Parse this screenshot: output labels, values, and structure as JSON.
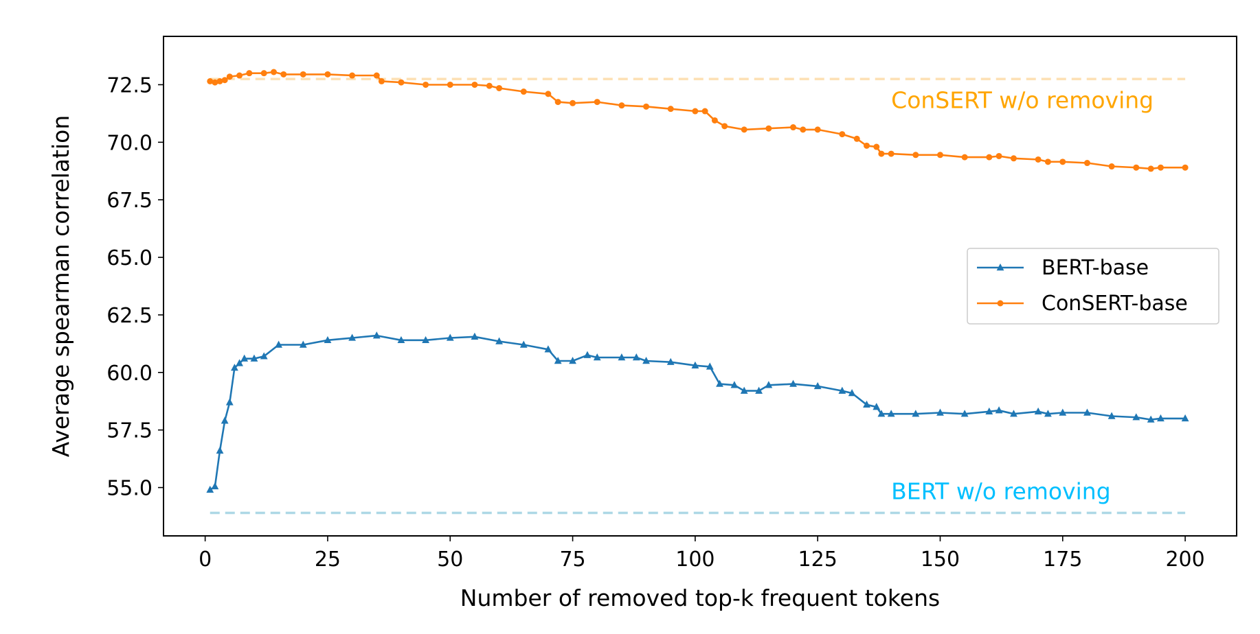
{
  "chart_data": {
    "type": "line",
    "title": "",
    "xlabel": "Number of removed top-k frequent tokens",
    "ylabel": "Average spearman correlation",
    "xlim": [
      -8.5,
      210.5
    ],
    "ylim": [
      52.9,
      74.6
    ],
    "xticks": [
      0,
      25,
      50,
      75,
      100,
      125,
      150,
      175,
      200
    ],
    "xtick_labels": [
      "0",
      "25",
      "50",
      "75",
      "100",
      "125",
      "150",
      "175",
      "200"
    ],
    "yticks": [
      55.0,
      57.5,
      60.0,
      62.5,
      65.0,
      67.5,
      70.0,
      72.5
    ],
    "ytick_labels": [
      "55.0",
      "57.5",
      "60.0",
      "62.5",
      "65.0",
      "67.5",
      "70.0",
      "72.5"
    ],
    "grid": false,
    "legend_position": "center-right",
    "series": [
      {
        "name": "BERT-base",
        "color": "#1f77b4",
        "marker": "triangle",
        "x": [
          1,
          2,
          3,
          4,
          5,
          6,
          7,
          8,
          10,
          12,
          15,
          20,
          25,
          30,
          35,
          40,
          45,
          50,
          55,
          60,
          65,
          70,
          72,
          75,
          78,
          80,
          85,
          88,
          90,
          95,
          100,
          103,
          105,
          108,
          110,
          113,
          115,
          120,
          125,
          130,
          132,
          135,
          137,
          138,
          140,
          145,
          150,
          155,
          160,
          162,
          165,
          170,
          172,
          175,
          180,
          185,
          190,
          193,
          195,
          200
        ],
        "values": [
          54.9,
          55.05,
          56.6,
          57.9,
          58.7,
          60.2,
          60.4,
          60.6,
          60.6,
          60.7,
          61.2,
          61.2,
          61.4,
          61.5,
          61.6,
          61.4,
          61.4,
          61.5,
          61.55,
          61.35,
          61.2,
          61.0,
          60.5,
          60.5,
          60.75,
          60.65,
          60.65,
          60.65,
          60.5,
          60.45,
          60.3,
          60.25,
          59.5,
          59.45,
          59.2,
          59.2,
          59.45,
          59.5,
          59.4,
          59.2,
          59.1,
          58.6,
          58.5,
          58.2,
          58.2,
          58.2,
          58.25,
          58.2,
          58.3,
          58.35,
          58.2,
          58.3,
          58.2,
          58.25,
          58.25,
          58.1,
          58.05,
          57.95,
          58.0,
          58.0
        ]
      },
      {
        "name": "ConSERT-base",
        "color": "#ff7f0e",
        "marker": "circle",
        "x": [
          1,
          2,
          3,
          4,
          5,
          7,
          9,
          12,
          14,
          16,
          20,
          25,
          30,
          35,
          36,
          40,
          45,
          50,
          55,
          58,
          60,
          65,
          70,
          72,
          75,
          80,
          85,
          90,
          95,
          100,
          102,
          104,
          106,
          110,
          115,
          120,
          122,
          125,
          130,
          133,
          135,
          137,
          138,
          140,
          145,
          150,
          155,
          160,
          162,
          165,
          170,
          172,
          175,
          180,
          185,
          190,
          193,
          195,
          200
        ],
        "values": [
          72.65,
          72.6,
          72.65,
          72.7,
          72.85,
          72.9,
          73.0,
          73.0,
          73.05,
          72.95,
          72.95,
          72.95,
          72.9,
          72.9,
          72.65,
          72.6,
          72.5,
          72.5,
          72.5,
          72.45,
          72.35,
          72.2,
          72.1,
          71.75,
          71.7,
          71.75,
          71.6,
          71.55,
          71.45,
          71.35,
          71.35,
          70.95,
          70.7,
          70.55,
          70.6,
          70.65,
          70.55,
          70.55,
          70.35,
          70.15,
          69.85,
          69.8,
          69.5,
          69.5,
          69.45,
          69.45,
          69.35,
          69.35,
          69.4,
          69.3,
          69.25,
          69.15,
          69.15,
          69.1,
          68.95,
          68.9,
          68.85,
          68.9,
          68.9
        ]
      }
    ],
    "reference_lines": [
      {
        "name": "ConSERT w/o removing",
        "y": 72.75,
        "color": "#ffa500",
        "line_color": "#fde0b3",
        "label_x": 140,
        "label_y": 71.85
      },
      {
        "name": "BERT w/o removing",
        "y": 53.9,
        "color": "#00bfff",
        "line_color": "#add8e6",
        "label_x": 140,
        "label_y": 54.85
      }
    ]
  }
}
